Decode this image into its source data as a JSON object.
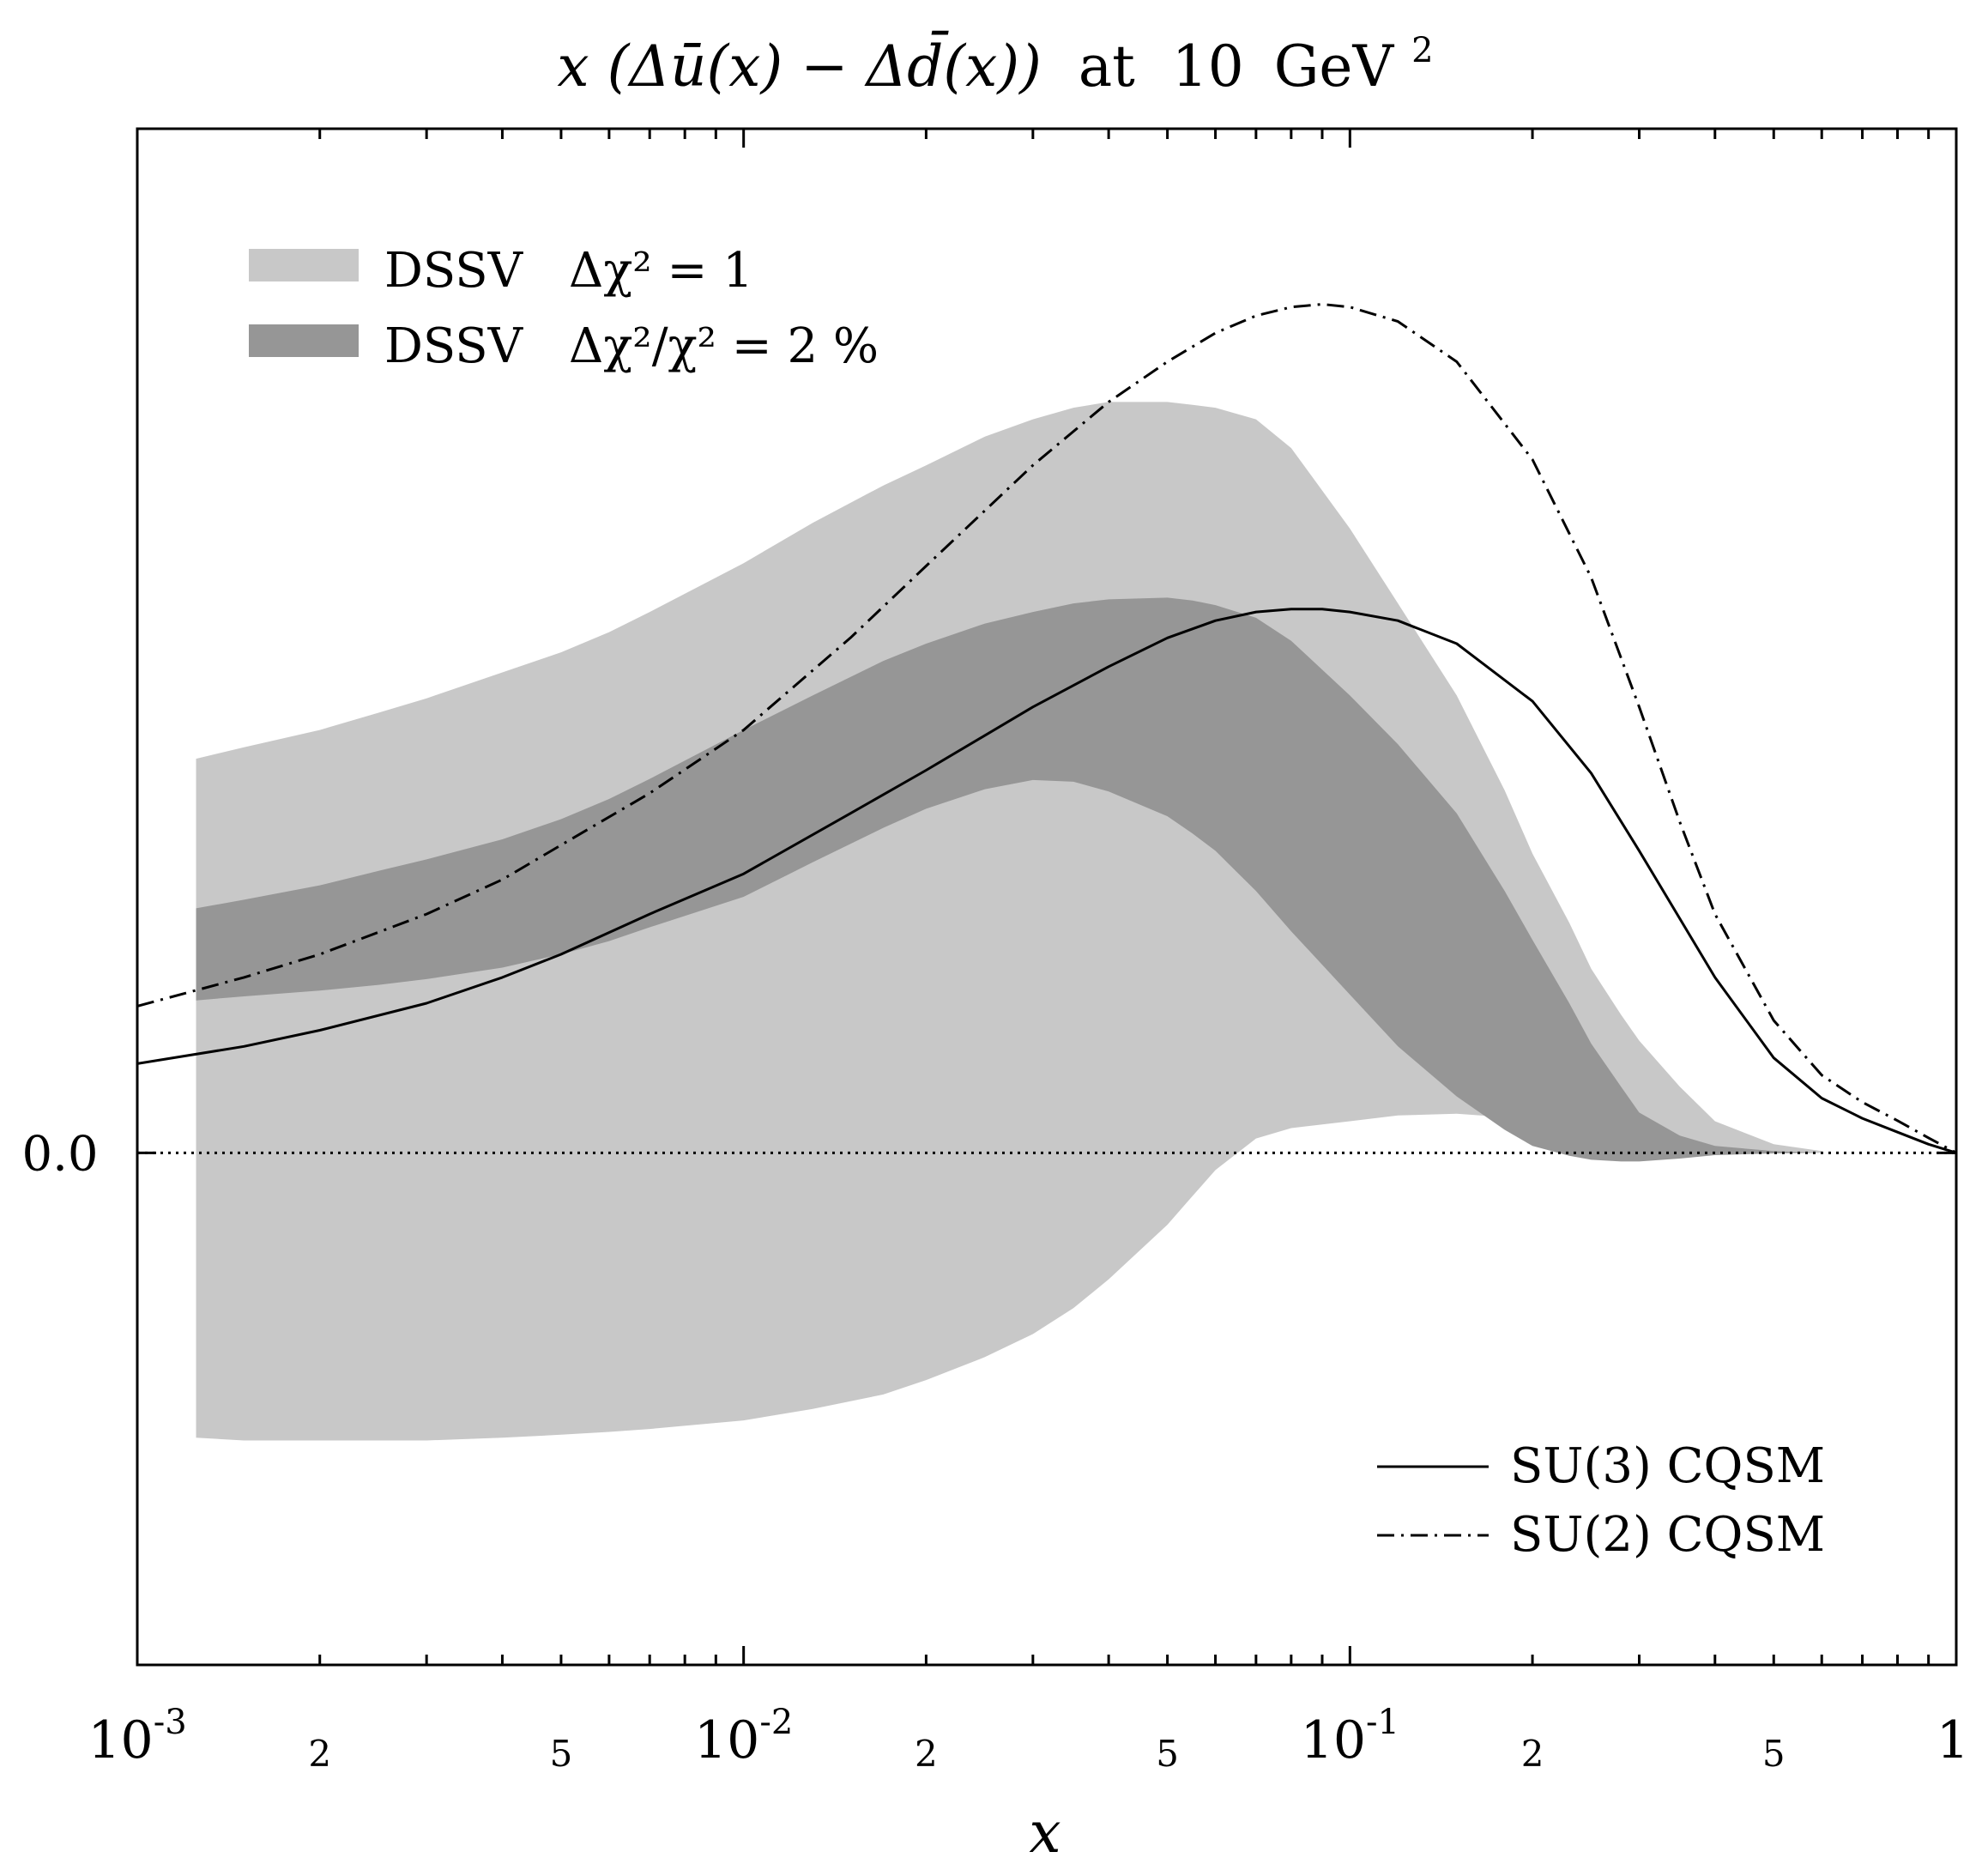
{
  "chart_data": {
    "type": "area",
    "title": {
      "text": "x (Δū(x) − Δd̄(x)) at 10 GeV²",
      "main": "x (Δū(x) − Δd̄(x))",
      "at": "at",
      "value": "10",
      "unit": "GeV",
      "exponent": "2"
    },
    "xlabel": "x",
    "ylabel": "",
    "x_scale": "log",
    "xlim": [
      0.001,
      1
    ],
    "ylim": [
      -0.089,
      0.178
    ],
    "y_zero_label": "0.0",
    "x_ticks": [
      {
        "value": 0.001,
        "base": "10",
        "exp": "-3"
      },
      {
        "value": 0.002,
        "label": "2"
      },
      {
        "value": 0.005,
        "label": "5"
      },
      {
        "value": 0.01,
        "base": "10",
        "exp": "-2"
      },
      {
        "value": 0.02,
        "label": "2"
      },
      {
        "value": 0.05,
        "label": "5"
      },
      {
        "value": 0.1,
        "base": "10",
        "exp": "-1"
      },
      {
        "value": 0.2,
        "label": "2"
      },
      {
        "value": 0.5,
        "label": "5"
      },
      {
        "value": 1,
        "label": "1"
      }
    ],
    "legend_bands": [
      {
        "label": "DSSV",
        "formula": "Δχ² = 1",
        "color": "#c8c8c8"
      },
      {
        "label": "DSSV",
        "formula": "Δχ²/χ² = 2 %",
        "color": "#969696"
      }
    ],
    "legend_lines": [
      {
        "label": "SU(3) CQSM",
        "style": "solid"
      },
      {
        "label": "SU(2) CQSM",
        "style": "dash-dot"
      }
    ],
    "legend_position": {
      "bands": "top-left",
      "lines": "bottom-right"
    },
    "bands": [
      {
        "name": "DSSV Δχ² = 1",
        "color": "#c8c8c8",
        "x": [
          0.00125,
          0.0015,
          0.002,
          0.0025,
          0.003,
          0.004,
          0.005,
          0.006,
          0.007,
          0.01,
          0.013,
          0.017,
          0.02,
          0.025,
          0.03,
          0.035,
          0.04,
          0.05,
          0.055,
          0.06,
          0.07,
          0.08,
          0.1,
          0.12,
          0.15,
          0.18,
          0.2,
          0.23,
          0.25,
          0.28,
          0.3,
          0.35,
          0.4,
          0.5,
          0.6
        ],
        "upper": [
          0.0685,
          0.0705,
          0.0735,
          0.0765,
          0.079,
          0.0835,
          0.087,
          0.0905,
          0.094,
          0.1025,
          0.1095,
          0.116,
          0.1195,
          0.1245,
          0.1275,
          0.1295,
          0.1305,
          0.1305,
          0.13,
          0.1295,
          0.1275,
          0.1225,
          0.1085,
          0.0955,
          0.0795,
          0.063,
          0.052,
          0.04,
          0.032,
          0.024,
          0.0195,
          0.0115,
          0.0055,
          0.0015,
          0.0003
        ],
        "lower": [
          -0.0495,
          -0.05,
          -0.05,
          -0.05,
          -0.05,
          -0.0495,
          -0.049,
          -0.0485,
          -0.048,
          -0.0465,
          -0.0445,
          -0.042,
          -0.0395,
          -0.0355,
          -0.0315,
          -0.027,
          -0.022,
          -0.0125,
          -0.0075,
          -0.003,
          0.0025,
          0.0043,
          0.0055,
          0.0065,
          0.0068,
          0.0062,
          0.0055,
          0.0043,
          0.0032,
          0.0022,
          0.0015,
          0.0008,
          0.0004,
          0.0001,
          0.0
        ]
      },
      {
        "name": "DSSV Δχ²/χ² = 2 %",
        "color": "#969696",
        "x": [
          0.00125,
          0.0015,
          0.002,
          0.0025,
          0.003,
          0.004,
          0.005,
          0.006,
          0.007,
          0.01,
          0.013,
          0.017,
          0.02,
          0.025,
          0.03,
          0.035,
          0.04,
          0.05,
          0.055,
          0.06,
          0.07,
          0.08,
          0.1,
          0.12,
          0.15,
          0.18,
          0.2,
          0.23,
          0.25,
          0.28,
          0.3,
          0.35,
          0.4,
          0.5,
          0.6
        ],
        "upper": [
          0.0425,
          0.044,
          0.0465,
          0.049,
          0.051,
          0.0545,
          0.058,
          0.0615,
          0.065,
          0.0735,
          0.0795,
          0.0855,
          0.0885,
          0.092,
          0.094,
          0.0955,
          0.0962,
          0.0965,
          0.096,
          0.0952,
          0.093,
          0.089,
          0.0795,
          0.071,
          0.059,
          0.0455,
          0.037,
          0.026,
          0.019,
          0.0115,
          0.007,
          0.003,
          0.0012,
          0.0003,
          0.0
        ],
        "lower": [
          0.0265,
          0.0272,
          0.0282,
          0.0292,
          0.0302,
          0.0322,
          0.0345,
          0.0368,
          0.0392,
          0.0445,
          0.0505,
          0.0565,
          0.0598,
          0.0632,
          0.0648,
          0.0645,
          0.0628,
          0.0585,
          0.0555,
          0.0525,
          0.0455,
          0.0385,
          0.0275,
          0.0185,
          0.0098,
          0.004,
          0.0012,
          -0.0005,
          -0.0012,
          -0.0015,
          -0.0015,
          -0.001,
          -0.0004,
          -0.0001,
          0.0
        ]
      }
    ],
    "series": [
      {
        "name": "SU(3) CQSM",
        "style": "solid",
        "x": [
          0.001,
          0.0015,
          0.002,
          0.003,
          0.004,
          0.005,
          0.007,
          0.01,
          0.015,
          0.02,
          0.03,
          0.04,
          0.05,
          0.06,
          0.07,
          0.08,
          0.09,
          0.1,
          0.12,
          0.15,
          0.2,
          0.25,
          0.3,
          0.4,
          0.5,
          0.6,
          0.7,
          0.8,
          0.9,
          1.0
        ],
        "y": [
          0.0155,
          0.0185,
          0.0213,
          0.026,
          0.0305,
          0.0345,
          0.0415,
          0.0485,
          0.059,
          0.0665,
          0.0775,
          0.0845,
          0.0895,
          0.0925,
          0.094,
          0.0945,
          0.0945,
          0.094,
          0.0925,
          0.0885,
          0.0785,
          0.066,
          0.0525,
          0.0305,
          0.0165,
          0.0095,
          0.006,
          0.0036,
          0.0015,
          0.0
        ]
      },
      {
        "name": "SU(2) CQSM",
        "style": "dash-dot",
        "x": [
          0.001,
          0.0015,
          0.002,
          0.003,
          0.004,
          0.005,
          0.007,
          0.01,
          0.015,
          0.02,
          0.03,
          0.04,
          0.05,
          0.06,
          0.07,
          0.08,
          0.09,
          0.1,
          0.12,
          0.15,
          0.2,
          0.25,
          0.3,
          0.35,
          0.4,
          0.5,
          0.6,
          0.7,
          0.8,
          0.9,
          1.0
        ],
        "y": [
          0.0255,
          0.0305,
          0.0345,
          0.0415,
          0.0475,
          0.0535,
          0.0625,
          0.0735,
          0.0895,
          0.102,
          0.1195,
          0.1305,
          0.1375,
          0.1425,
          0.1455,
          0.147,
          0.1475,
          0.147,
          0.1445,
          0.1375,
          0.1205,
          0.1,
          0.0775,
          0.0575,
          0.0415,
          0.023,
          0.0135,
          0.0088,
          0.0056,
          0.0026,
          0.0
        ]
      }
    ]
  }
}
